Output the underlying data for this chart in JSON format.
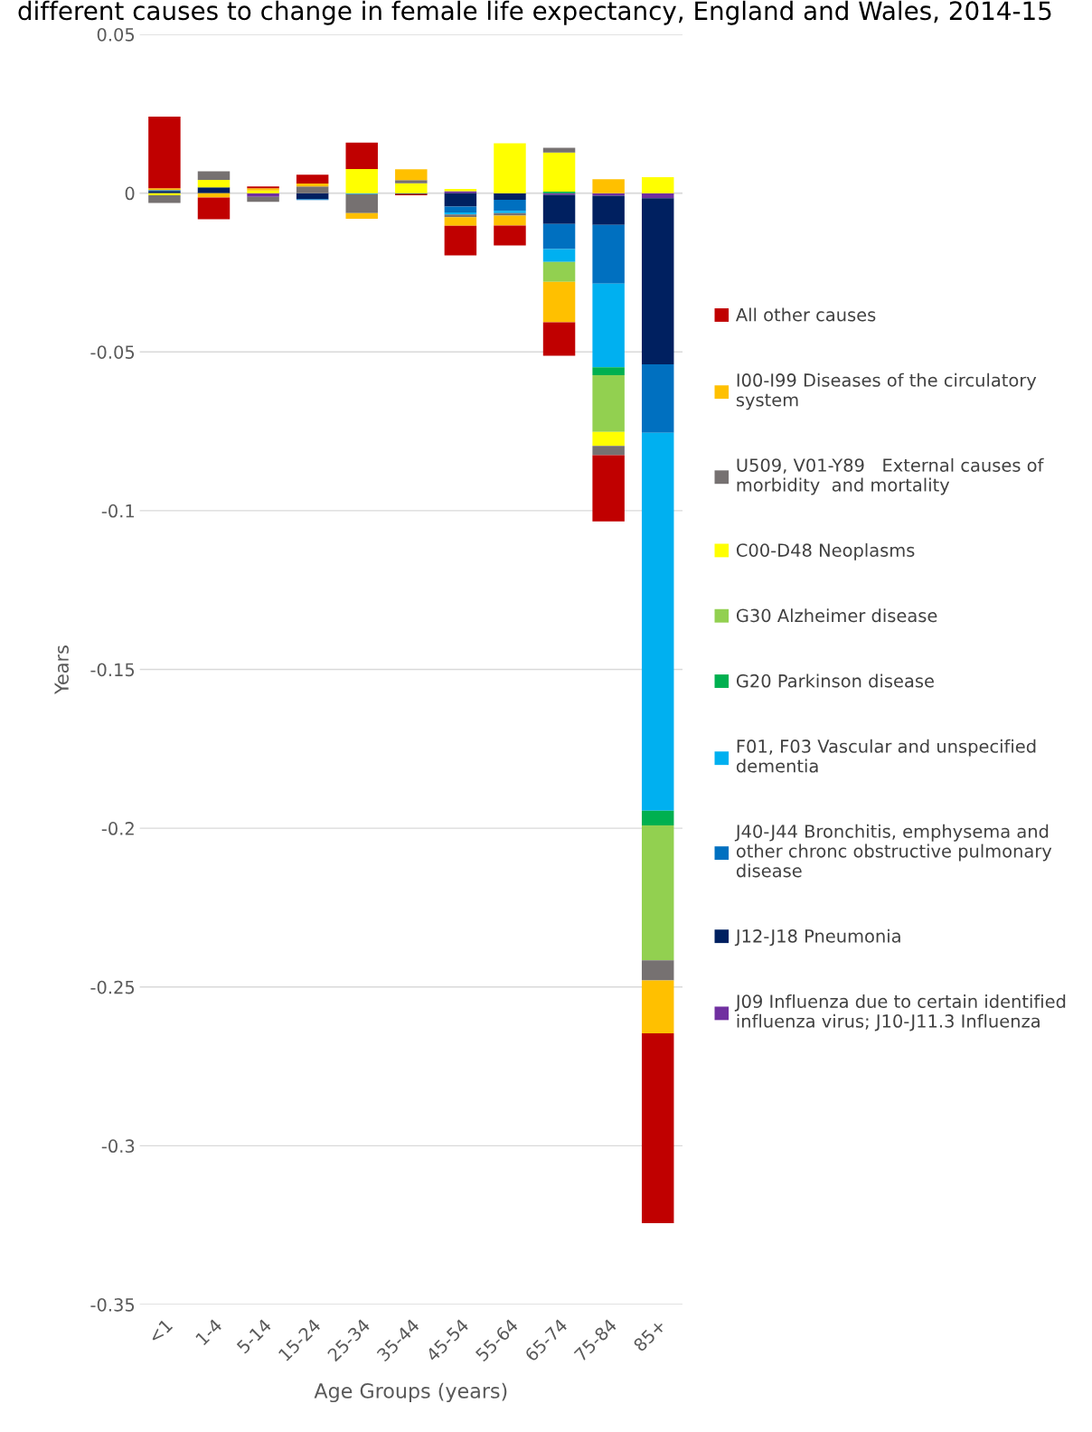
{
  "chart_data": {
    "type": "bar",
    "title": "different causes to change in female life expectancy, England and Wales, 2014-15",
    "xlabel": "Age Groups (years)",
    "ylabel": "Years",
    "stacked": true,
    "grid": "y",
    "legend": "right",
    "categories": [
      "<1",
      "1-4",
      "5-14",
      "15-24",
      "25-34",
      "35-44",
      "45-54",
      "55-64",
      "65-74",
      "75-84",
      "85+"
    ],
    "ylim": [
      -0.35,
      0.05
    ],
    "yticks": [
      0.05,
      0,
      -0.05,
      -0.1,
      -0.15,
      -0.2,
      -0.25,
      -0.3,
      -0.35
    ],
    "series": [
      {
        "name": "J09 Influenza due to certain identified\ninfluenza virus; J10-J11.3 Influenza",
        "color": "#7030a0",
        "values": [
          0,
          0,
          -0.0012,
          0,
          0,
          0,
          0.0006,
          0,
          -0.0005,
          -0.0008,
          -0.0016
        ]
      },
      {
        "name": "J12-J18 Pneumonia",
        "color": "#002060",
        "values": [
          0.0007,
          0.0018,
          0,
          -0.0019,
          0,
          -0.0003,
          -0.0042,
          -0.0021,
          -0.0092,
          -0.0092,
          -0.0523
        ]
      },
      {
        "name": "J40-J44 Bronchitis, emphysema and\nother chronc obstructive pulmonary\ndisease",
        "color": "#0070c0",
        "values": [
          0.0003,
          0,
          0,
          -0.0003,
          0,
          0,
          -0.0019,
          -0.0035,
          -0.0079,
          -0.0185,
          -0.0216
        ]
      },
      {
        "name": "F01, F03 Vascular and unspecified\ndementia",
        "color": "#00b0f0",
        "values": [
          0,
          0,
          0,
          0,
          -0.0003,
          0,
          -0.0006,
          -0.0007,
          -0.0041,
          -0.0263,
          -0.119
        ]
      },
      {
        "name": "G20 Parkinson disease",
        "color": "#00b050",
        "values": [
          0,
          0,
          0,
          0,
          0,
          0,
          0,
          0,
          0.0005,
          -0.0025,
          -0.0046
        ]
      },
      {
        "name": "G30 Alzheimer disease",
        "color": "#92d050",
        "values": [
          0,
          0,
          0,
          0,
          0,
          null,
          0,
          0,
          -0.0062,
          -0.0179,
          -0.0425
        ]
      },
      {
        "name": "C00-D48 Neoplasms",
        "color": "#ffff00",
        "values": [
          -0.0007,
          0.0024,
          0.0008,
          0,
          0.0076,
          0.0031,
          0.0007,
          0.0157,
          0.0123,
          -0.0044,
          0.005
        ]
      },
      {
        "name": "U509, V01-Y89   External causes of\nmorbidity  and mortality",
        "color": "#767171",
        "values": [
          -0.0024,
          0.0027,
          -0.0015,
          0.0021,
          -0.006,
          0.001,
          -0.0009,
          -0.0008,
          0.0015,
          -0.0029,
          -0.0063
        ]
      },
      {
        "name": "I00-I99 Diseases of the circulatory\nsystem",
        "color": "#ffc000",
        "values": [
          0.0005,
          -0.0014,
          0.0007,
          0.0009,
          -0.0018,
          0.0034,
          -0.0027,
          -0.0031,
          -0.0128,
          0.0044,
          -0.0167
        ]
      },
      {
        "name": "All other causes",
        "color": "#c00000",
        "values": [
          0.0226,
          -0.0068,
          0.0006,
          0.0028,
          0.0083,
          -0.0004,
          -0.0093,
          -0.0063,
          -0.0105,
          -0.0209,
          -0.0598
        ]
      }
    ]
  }
}
